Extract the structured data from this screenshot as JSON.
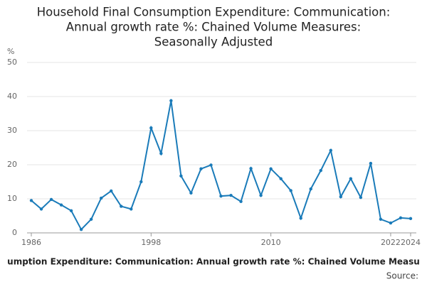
{
  "chart_data": {
    "type": "line",
    "title": [
      "Household Final Consumption Expenditure: Communication:",
      "Annual growth rate %: Chained Volume Measures:",
      "Seasonally Adjusted"
    ],
    "y_label": "%",
    "x_label": "umption Expenditure: Communication: Annual growth rate %: Chained Volume Measu",
    "source": "Source:",
    "x": [
      1986,
      1987,
      1988,
      1989,
      1990,
      1991,
      1992,
      1993,
      1994,
      1995,
      1996,
      1997,
      1998,
      1999,
      2000,
      2001,
      2002,
      2003,
      2004,
      2005,
      2006,
      2007,
      2008,
      2009,
      2010,
      2011,
      2012,
      2013,
      2014,
      2015,
      2016,
      2017,
      2018,
      2019,
      2020,
      2021,
      2022,
      2023,
      2024
    ],
    "values": [
      9.5,
      7,
      9.8,
      8.2,
      6.5,
      1,
      4,
      10.2,
      12.3,
      7.8,
      7,
      15,
      30.8,
      23.3,
      38.8,
      16.7,
      11.7,
      18.8,
      19.9,
      10.8,
      11,
      9.2,
      18.9,
      11,
      18.8,
      15.9,
      12.4,
      4.3,
      12.9,
      18.3,
      24.2,
      10.6,
      15.9,
      10.4,
      20.4,
      4,
      2.9,
      4.4,
      4.2
    ],
    "color": "#1a7bb9",
    "xlim": [
      1986,
      2024
    ],
    "xticks": [
      1986,
      1998,
      2010,
      2022,
      2024
    ],
    "ylim": [
      0,
      50
    ],
    "yticks": [
      0,
      10,
      20,
      30,
      40,
      50
    ],
    "grid": true
  }
}
